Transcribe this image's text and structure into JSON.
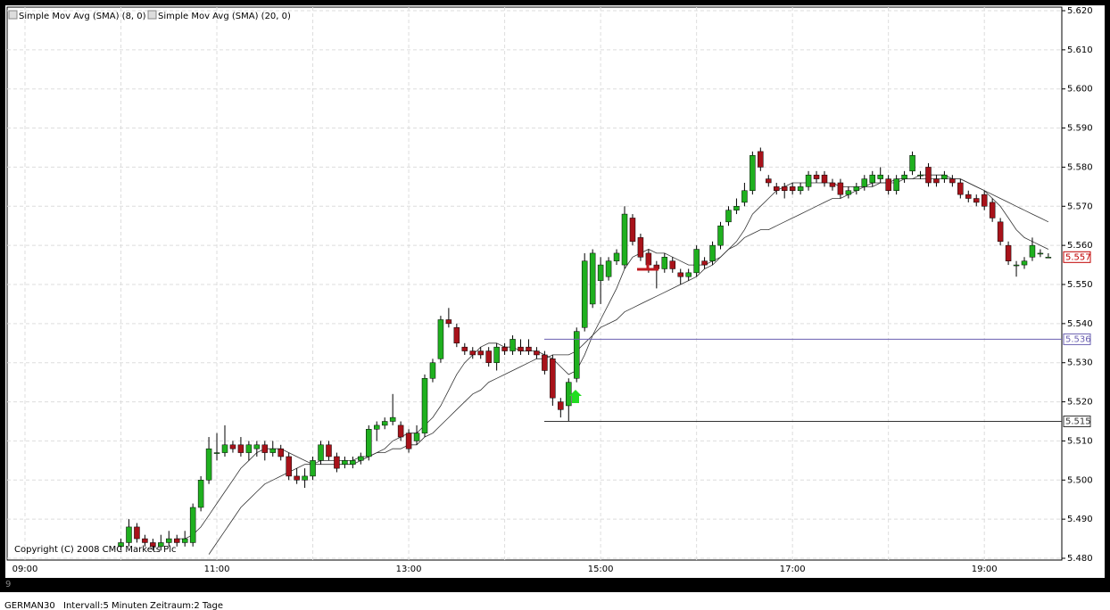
{
  "chart_data": {
    "type": "candlestick",
    "categories": [
      "09:00",
      null,
      null,
      null,
      null,
      null,
      null,
      null,
      null,
      null,
      null,
      null,
      null,
      null,
      null,
      null,
      null,
      null,
      null,
      null,
      null,
      null,
      null,
      null,
      "11:00",
      null,
      null,
      null,
      null,
      null,
      null,
      null,
      null,
      null,
      null,
      null,
      null,
      null,
      null,
      null,
      null,
      null,
      null,
      null,
      null,
      null,
      null,
      null,
      "13:00",
      null,
      null,
      null,
      null,
      null,
      null,
      null,
      null,
      null,
      null,
      null,
      null,
      null,
      null,
      null,
      null,
      null,
      null,
      null,
      null,
      null,
      null,
      null,
      "15:00",
      null,
      null,
      null,
      null,
      null,
      null,
      null,
      null,
      null,
      null,
      null,
      null,
      null,
      null,
      null,
      null,
      null,
      null,
      null,
      null,
      null,
      null,
      null,
      "17:00",
      null,
      null,
      null,
      null,
      null,
      null,
      null,
      null,
      null,
      null,
      null,
      null,
      null,
      null,
      null,
      null,
      null,
      null,
      null,
      null,
      null,
      null,
      null,
      "19:00",
      null,
      null,
      null,
      null,
      null,
      null,
      null,
      null
    ],
    "open": [
      null,
      null,
      null,
      null,
      null,
      null,
      null,
      null,
      null,
      null,
      null,
      null,
      5.483,
      5.484,
      5.488,
      5.485,
      5.484,
      5.483,
      5.484,
      5.485,
      5.484,
      5.484,
      5.493,
      5.5,
      5.507,
      5.507,
      5.509,
      5.509,
      5.507,
      5.508,
      5.509,
      5.507,
      5.508,
      5.506,
      5.501,
      5.5,
      5.501,
      5.505,
      5.509,
      5.506,
      5.504,
      5.504,
      5.505,
      5.506,
      5.513,
      5.514,
      5.515,
      5.514,
      5.512,
      5.51,
      5.512,
      5.526,
      5.531,
      5.541,
      5.539,
      5.534,
      5.533,
      5.533,
      5.533,
      5.53,
      5.534,
      5.533,
      5.534,
      5.534,
      5.533,
      5.532,
      5.531,
      5.52,
      5.519,
      5.526,
      5.539,
      5.545,
      5.551,
      5.552,
      5.556,
      5.555,
      5.567,
      5.562,
      5.558,
      5.555,
      5.554,
      5.556,
      5.553,
      5.552,
      5.553,
      5.556,
      5.556,
      5.56,
      5.566,
      5.569,
      5.571,
      5.574,
      5.584,
      5.577,
      5.575,
      5.575,
      5.575,
      5.574,
      5.575,
      5.578,
      5.578,
      5.576,
      5.576,
      5.573,
      5.574,
      5.575,
      5.576,
      5.577,
      5.577,
      5.574,
      5.577,
      5.579,
      5.578,
      5.58,
      5.577,
      5.577,
      5.577,
      5.576,
      5.573,
      5.572,
      5.573,
      5.571,
      5.566,
      5.56,
      5.555,
      5.555,
      5.557,
      5.558,
      5.557
    ],
    "high": [
      null,
      null,
      null,
      null,
      null,
      null,
      null,
      null,
      null,
      null,
      null,
      null,
      5.485,
      5.49,
      5.489,
      5.486,
      5.485,
      5.486,
      5.487,
      5.486,
      5.487,
      5.494,
      5.501,
      5.511,
      5.512,
      5.514,
      5.51,
      5.511,
      5.51,
      5.51,
      5.51,
      5.51,
      5.509,
      5.507,
      5.503,
      5.503,
      5.506,
      5.51,
      5.51,
      5.507,
      5.506,
      5.506,
      5.507,
      5.514,
      5.515,
      5.516,
      5.522,
      5.515,
      5.513,
      5.514,
      5.527,
      5.531,
      5.542,
      5.544,
      5.54,
      5.535,
      5.534,
      5.534,
      5.534,
      5.535,
      5.535,
      5.537,
      5.536,
      5.536,
      5.534,
      5.533,
      5.532,
      5.521,
      5.526,
      5.539,
      5.558,
      5.559,
      5.557,
      5.557,
      5.559,
      5.57,
      5.568,
      5.563,
      5.559,
      5.556,
      5.558,
      5.557,
      5.554,
      5.554,
      5.56,
      5.557,
      5.561,
      5.566,
      5.57,
      5.572,
      5.576,
      5.584,
      5.585,
      5.578,
      5.576,
      5.576,
      5.576,
      5.576,
      5.579,
      5.579,
      5.579,
      5.577,
      5.577,
      5.575,
      5.576,
      5.578,
      5.579,
      5.58,
      5.578,
      5.578,
      5.579,
      5.584,
      5.579,
      5.581,
      5.578,
      5.579,
      5.578,
      5.577,
      5.574,
      5.573,
      5.574,
      5.572,
      5.567,
      5.561,
      5.556,
      5.557,
      5.562,
      5.559,
      5.558
    ],
    "low": [
      null,
      null,
      null,
      null,
      null,
      null,
      null,
      null,
      null,
      null,
      null,
      null,
      5.482,
      5.483,
      5.484,
      5.483,
      5.482,
      5.482,
      5.483,
      5.483,
      5.483,
      5.483,
      5.492,
      5.499,
      5.505,
      5.506,
      5.507,
      5.506,
      5.505,
      5.506,
      5.505,
      5.506,
      5.505,
      5.5,
      5.499,
      5.498,
      5.5,
      5.504,
      5.505,
      5.502,
      5.503,
      5.503,
      5.504,
      5.505,
      5.51,
      5.513,
      5.514,
      5.51,
      5.507,
      5.509,
      5.511,
      5.525,
      5.53,
      5.539,
      5.534,
      5.532,
      5.531,
      5.531,
      5.529,
      5.528,
      5.532,
      5.532,
      5.532,
      5.532,
      5.531,
      5.527,
      5.519,
      5.516,
      5.515,
      5.525,
      5.538,
      5.544,
      5.545,
      5.551,
      5.555,
      5.554,
      5.56,
      5.556,
      5.553,
      5.549,
      5.553,
      5.553,
      5.55,
      5.551,
      5.552,
      5.554,
      5.555,
      5.559,
      5.565,
      5.568,
      5.57,
      5.573,
      5.579,
      5.575,
      5.573,
      5.572,
      5.573,
      5.573,
      5.574,
      5.576,
      5.575,
      5.574,
      5.572,
      5.572,
      5.573,
      5.574,
      5.575,
      5.576,
      5.573,
      5.573,
      5.576,
      5.578,
      5.577,
      5.575,
      5.575,
      5.576,
      5.575,
      5.572,
      5.571,
      5.57,
      5.569,
      5.566,
      5.56,
      5.555,
      5.552,
      5.554,
      5.556,
      5.557,
      5.557
    ],
    "close": [
      null,
      null,
      null,
      null,
      null,
      null,
      null,
      null,
      null,
      null,
      null,
      null,
      5.484,
      5.488,
      5.485,
      5.484,
      5.483,
      5.484,
      5.485,
      5.484,
      5.485,
      5.493,
      5.5,
      5.508,
      5.507,
      5.509,
      5.508,
      5.507,
      5.509,
      5.509,
      5.507,
      5.508,
      5.506,
      5.501,
      5.5,
      5.501,
      5.505,
      5.509,
      5.506,
      5.503,
      5.505,
      5.505,
      5.506,
      5.513,
      5.514,
      5.515,
      5.516,
      5.511,
      5.508,
      5.512,
      5.526,
      5.53,
      5.541,
      5.54,
      5.535,
      5.533,
      5.532,
      5.532,
      5.53,
      5.534,
      5.533,
      5.536,
      5.533,
      5.533,
      5.532,
      5.528,
      5.521,
      5.518,
      5.525,
      5.538,
      5.556,
      5.558,
      5.555,
      5.556,
      5.558,
      5.568,
      5.561,
      5.557,
      5.555,
      5.554,
      5.557,
      5.554,
      5.552,
      5.553,
      5.559,
      5.555,
      5.56,
      5.565,
      5.569,
      5.57,
      5.574,
      5.583,
      5.58,
      5.576,
      5.574,
      5.574,
      5.574,
      5.575,
      5.578,
      5.577,
      5.576,
      5.575,
      5.573,
      5.574,
      5.575,
      5.577,
      5.578,
      5.578,
      5.574,
      5.577,
      5.578,
      5.583,
      5.578,
      5.576,
      5.576,
      5.578,
      5.576,
      5.573,
      5.572,
      5.571,
      5.57,
      5.567,
      5.561,
      5.556,
      5.555,
      5.556,
      5.56,
      5.558,
      5.557
    ],
    "up_color": "#1fb01f",
    "down_color": "#a8121a",
    "series": [
      {
        "name": "Simple Mov Avg (SMA) (8, 0)",
        "color": "#333333",
        "values": [
          null,
          null,
          null,
          null,
          null,
          null,
          null,
          null,
          null,
          null,
          null,
          null,
          null,
          null,
          null,
          null,
          null,
          null,
          null,
          5.485,
          5.485,
          5.486,
          5.488,
          5.491,
          5.494,
          5.497,
          5.5,
          5.503,
          5.505,
          5.507,
          5.508,
          5.508,
          5.508,
          5.507,
          5.506,
          5.505,
          5.504,
          5.504,
          5.504,
          5.504,
          5.504,
          5.504,
          5.505,
          5.506,
          5.507,
          5.508,
          5.51,
          5.511,
          5.512,
          5.512,
          5.514,
          5.516,
          5.519,
          5.523,
          5.527,
          5.53,
          5.532,
          5.534,
          5.535,
          5.535,
          5.534,
          5.534,
          5.533,
          5.533,
          5.533,
          5.532,
          5.531,
          5.529,
          5.527,
          5.528,
          5.532,
          5.537,
          5.541,
          5.545,
          5.549,
          5.554,
          5.557,
          5.558,
          5.559,
          5.558,
          5.558,
          5.557,
          5.556,
          5.555,
          5.555,
          5.555,
          5.556,
          5.557,
          5.559,
          5.561,
          5.564,
          5.568,
          5.57,
          5.572,
          5.574,
          5.575,
          5.576,
          5.576,
          5.576,
          5.576,
          5.576,
          5.576,
          5.575,
          5.575,
          5.575,
          5.575,
          5.576,
          5.576,
          5.576,
          5.576,
          5.577,
          5.577,
          5.578,
          5.578,
          5.578,
          5.578,
          5.577,
          5.577,
          5.576,
          5.575,
          5.574,
          5.572,
          5.57,
          5.567,
          5.564,
          5.562,
          5.561,
          5.56,
          5.559
        ]
      },
      {
        "name": "Simple Mov Avg (SMA) (20, 0)",
        "color": "#333333",
        "values": [
          null,
          null,
          null,
          null,
          null,
          null,
          null,
          null,
          null,
          null,
          null,
          null,
          null,
          null,
          null,
          null,
          null,
          null,
          null,
          null,
          null,
          null,
          null,
          5.481,
          5.484,
          5.487,
          5.49,
          5.493,
          5.495,
          5.497,
          5.499,
          5.5,
          5.501,
          5.502,
          5.503,
          5.504,
          5.504,
          5.505,
          5.505,
          5.505,
          5.505,
          5.505,
          5.506,
          5.506,
          5.507,
          5.507,
          5.508,
          5.508,
          5.509,
          5.509,
          5.511,
          5.512,
          5.514,
          5.516,
          5.518,
          5.52,
          5.522,
          5.523,
          5.525,
          5.526,
          5.527,
          5.528,
          5.529,
          5.53,
          5.531,
          5.531,
          5.532,
          5.532,
          5.532,
          5.533,
          5.535,
          5.537,
          5.539,
          5.54,
          5.541,
          5.543,
          5.544,
          5.545,
          5.546,
          5.547,
          5.548,
          5.549,
          5.55,
          5.551,
          5.552,
          5.554,
          5.555,
          5.557,
          5.559,
          5.56,
          5.562,
          5.563,
          5.564,
          5.564,
          5.565,
          5.566,
          5.567,
          5.568,
          5.569,
          5.57,
          5.571,
          5.572,
          5.572,
          5.573,
          5.574,
          5.575,
          5.575,
          5.576,
          5.576,
          5.577,
          5.577,
          5.577,
          5.577,
          5.577,
          5.577,
          5.577,
          5.577,
          5.577,
          5.576,
          5.575,
          5.574,
          5.573,
          5.572,
          5.571,
          5.57,
          5.569,
          5.568,
          5.567,
          5.566
        ]
      }
    ],
    "ylim": [
      5.48,
      5.62
    ],
    "yticks": [
      {
        "value": 5.48,
        "label": "5.480"
      },
      {
        "value": 5.49,
        "label": "5.490"
      },
      {
        "value": 5.5,
        "label": "5.500"
      },
      {
        "value": 5.51,
        "label": "5.510"
      },
      {
        "value": 5.52,
        "label": "5.520"
      },
      {
        "value": 5.53,
        "label": "5.530"
      },
      {
        "value": 5.54,
        "label": "5.540"
      },
      {
        "value": 5.55,
        "label": "5.550"
      },
      {
        "value": 5.56,
        "label": "5.560"
      },
      {
        "value": 5.57,
        "label": "5.570"
      },
      {
        "value": 5.58,
        "label": "5.580"
      },
      {
        "value": 5.59,
        "label": "5.590"
      },
      {
        "value": 5.6,
        "label": "5.600"
      },
      {
        "value": 5.61,
        "label": "5.610"
      },
      {
        "value": 5.62,
        "label": "5.620"
      }
    ],
    "grid": true,
    "levels": [
      {
        "value": 5.536,
        "label": "5.536",
        "color": "#6a5fb0"
      },
      {
        "value": 5.515,
        "label": "5.515",
        "color": "#333333"
      }
    ],
    "last": {
      "value": 5.557,
      "label": "5.557",
      "color": "#c00000"
    },
    "copyright": "Copyright (C) 2008 CMC Markets Plc",
    "date_label": "9",
    "status": [
      "GERMAN30",
      "Intervall:5 Minuten",
      "Zeitraum:2 Tage"
    ]
  }
}
